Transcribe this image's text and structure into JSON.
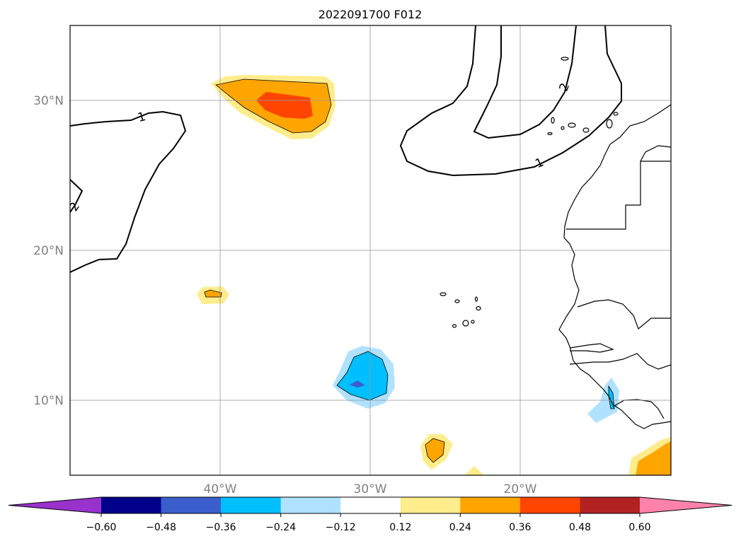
{
  "chart_data": {
    "type": "heatmap",
    "title": "2022091700 F012",
    "map": {
      "lon_range": [
        -50,
        -10
      ],
      "lat_range": [
        5,
        35
      ],
      "grid": true
    },
    "lat_ticks": [
      {
        "value": 30,
        "label": "30°N"
      },
      {
        "value": 20,
        "label": "20°N"
      },
      {
        "value": 10,
        "label": "10°N"
      }
    ],
    "lon_ticks": [
      {
        "value": -40,
        "label": "40°W"
      },
      {
        "value": -30,
        "label": "30°W"
      },
      {
        "value": -20,
        "label": "20°W"
      }
    ],
    "colorbar": {
      "levels": [
        -0.72,
        -0.6,
        -0.48,
        -0.36,
        -0.24,
        -0.12,
        0.12,
        0.24,
        0.36,
        0.48,
        0.6,
        0.72
      ],
      "colors": [
        "#9932cc",
        "#00008b",
        "#3a5fcd",
        "#00bfff",
        "#b0e2ff",
        "#ffffff",
        "#ffec8b",
        "#ffa500",
        "#ff4500",
        "#b22222",
        "#ff82ab"
      ],
      "extend_min_color": "#9932cc",
      "extend_max_color": "#ff82ab",
      "tick_values": [
        -0.6,
        -0.48,
        -0.36,
        -0.24,
        -0.12,
        0.12,
        0.24,
        0.36,
        0.48,
        0.6
      ],
      "tick_labels": [
        "−0.60",
        "−0.48",
        "−0.36",
        "−0.24",
        "−0.12",
        "0.12",
        "0.24",
        "0.36",
        "0.48",
        "0.60"
      ]
    },
    "contour_labels": [
      {
        "text": "1",
        "lon": -44.6,
        "lat": 29.0
      },
      {
        "text": "1",
        "lon": -17.8,
        "lat": 26.0
      },
      {
        "text": "2",
        "lon": -16.7,
        "lat": 31.0
      },
      {
        "text": "2",
        "lon": -49.8,
        "lat": 22.6
      }
    ],
    "anomaly_features": [
      {
        "name": "positive-anomaly-north-atlantic",
        "lon": -35.0,
        "lat": 29.5,
        "peak": 0.42
      },
      {
        "name": "positive-anomaly-small-west",
        "lon": -40.0,
        "lat": 17.0,
        "peak": 0.28
      },
      {
        "name": "negative-anomaly-central",
        "lon": -30.5,
        "lat": 11.5,
        "peak": -0.4
      },
      {
        "name": "negative-anomaly-africa-coast",
        "lon": -13.5,
        "lat": 9.5,
        "peak": -0.25
      },
      {
        "name": "positive-anomaly-south",
        "lon": -25.5,
        "lat": 6.8,
        "peak": 0.3
      },
      {
        "name": "positive-anomaly-gulf-guinea",
        "lon": -11.0,
        "lat": 6.0,
        "peak": 0.32
      }
    ]
  }
}
